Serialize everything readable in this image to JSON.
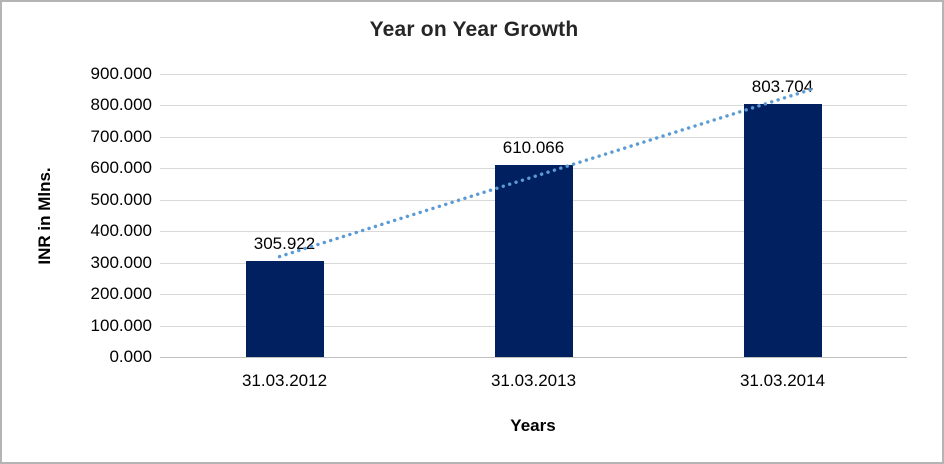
{
  "chart": {
    "border_color": "#b4b4b4",
    "background_color": "#ffffff"
  },
  "chart_data": {
    "type": "bar",
    "title": "Year on Year Growth",
    "xlabel": "Years",
    "ylabel": "INR in Mlns.",
    "categories": [
      "31.03.2012",
      "31.03.2013",
      "31.03.2014"
    ],
    "values": [
      305.922,
      610.066,
      803.704
    ],
    "value_labels": [
      "305.922",
      "610.066",
      "803.704"
    ],
    "yticks": [
      {
        "value": 900,
        "label": "900.000"
      },
      {
        "value": 800,
        "label": "800.000"
      },
      {
        "value": 700,
        "label": "700.000"
      },
      {
        "value": 600,
        "label": "600.000"
      },
      {
        "value": 500,
        "label": "500.000"
      },
      {
        "value": 400,
        "label": "400.000"
      },
      {
        "value": 300,
        "label": "300.000"
      },
      {
        "value": 200,
        "label": "200.000"
      },
      {
        "value": 100,
        "label": "100.000"
      },
      {
        "value": 0,
        "label": "0.000"
      }
    ],
    "ylim": [
      0,
      900
    ],
    "grid": true,
    "legend": false,
    "bar_color": "#002060",
    "gridline_color": "#d9d9d9",
    "axis_line_color": "#bfbfbf",
    "text_color": "#000000",
    "trendline": {
      "fit": "linear",
      "style": "dotted",
      "color": "#5b9bd5"
    }
  }
}
